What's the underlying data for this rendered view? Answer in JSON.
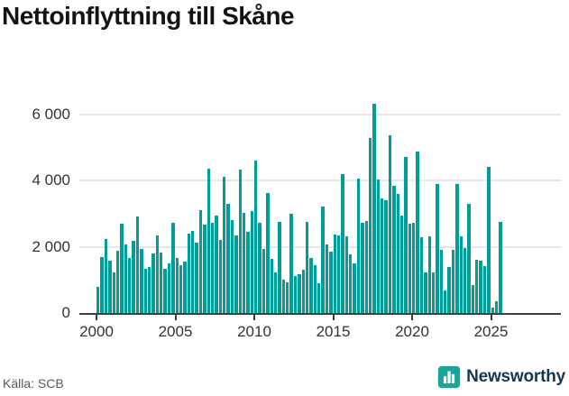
{
  "title": "Nettoinflyttning till Skåne",
  "footer": {
    "source": "Källa: SCB"
  },
  "brand": {
    "name": "Newsworthy",
    "icon_color": "#1ba39c",
    "text_color": "#16384e"
  },
  "chart_data": {
    "type": "bar",
    "title": "Nettoinflyttning till Skåne",
    "xlabel": "",
    "ylabel": "",
    "bar_color": "#009e99",
    "grid": true,
    "legend": "none",
    "ylim": [
      0,
      6600
    ],
    "x_tick_labels": [
      "2000",
      "2005",
      "2010",
      "2015",
      "2020",
      "2025"
    ],
    "y_ticks": [
      {
        "value": 0,
        "label": "0"
      },
      {
        "value": 2000,
        "label": "2 000"
      },
      {
        "value": 4000,
        "label": "4 000"
      },
      {
        "value": 6000,
        "label": "6 000"
      }
    ],
    "frequency": "quarterly",
    "categories": [
      "2000Q1",
      "2000Q2",
      "2000Q3",
      "2000Q4",
      "2001Q1",
      "2001Q2",
      "2001Q3",
      "2001Q4",
      "2002Q1",
      "2002Q2",
      "2002Q3",
      "2002Q4",
      "2003Q1",
      "2003Q2",
      "2003Q3",
      "2003Q4",
      "2004Q1",
      "2004Q2",
      "2004Q3",
      "2004Q4",
      "2005Q1",
      "2005Q2",
      "2005Q3",
      "2005Q4",
      "2006Q1",
      "2006Q2",
      "2006Q3",
      "2006Q4",
      "2007Q1",
      "2007Q2",
      "2007Q3",
      "2007Q4",
      "2008Q1",
      "2008Q2",
      "2008Q3",
      "2008Q4",
      "2009Q1",
      "2009Q2",
      "2009Q3",
      "2009Q4",
      "2010Q1",
      "2010Q2",
      "2010Q3",
      "2010Q4",
      "2011Q1",
      "2011Q2",
      "2011Q3",
      "2011Q4",
      "2012Q1",
      "2012Q2",
      "2012Q3",
      "2012Q4",
      "2013Q1",
      "2013Q2",
      "2013Q3",
      "2013Q4",
      "2014Q1",
      "2014Q2",
      "2014Q3",
      "2014Q4",
      "2015Q1",
      "2015Q2",
      "2015Q3",
      "2015Q4",
      "2016Q1",
      "2016Q2",
      "2016Q3",
      "2016Q4",
      "2017Q1",
      "2017Q2",
      "2017Q3",
      "2017Q4",
      "2018Q1",
      "2018Q2",
      "2018Q3",
      "2018Q4",
      "2019Q1",
      "2019Q2",
      "2019Q3",
      "2019Q4",
      "2020Q1",
      "2020Q2",
      "2020Q3",
      "2020Q4",
      "2021Q1",
      "2021Q2",
      "2021Q3",
      "2021Q4",
      "2022Q1",
      "2022Q2",
      "2022Q3",
      "2022Q4",
      "2023Q1",
      "2023Q2",
      "2023Q3",
      "2023Q4",
      "2024Q1",
      "2024Q2",
      "2024Q3",
      "2024Q4",
      "2025Q1",
      "2025Q2",
      "2025Q3"
    ],
    "values": [
      800,
      1700,
      2230,
      1580,
      1230,
      1890,
      2700,
      2080,
      1670,
      2190,
      2900,
      1920,
      1330,
      1390,
      1790,
      2340,
      1810,
      1340,
      1500,
      2710,
      1650,
      1450,
      1540,
      2400,
      2480,
      2120,
      3100,
      2660,
      4350,
      2710,
      2930,
      2210,
      4100,
      3290,
      2800,
      2350,
      4330,
      3020,
      2440,
      3070,
      4600,
      2710,
      1930,
      3610,
      1630,
      1220,
      2750,
      1000,
      930,
      2990,
      1110,
      1160,
      1310,
      2760,
      1670,
      1450,
      910,
      3200,
      2080,
      1850,
      2370,
      2330,
      4180,
      2300,
      1770,
      1500,
      4060,
      2710,
      2770,
      5280,
      6320,
      4020,
      3450,
      3400,
      5370,
      3850,
      3590,
      2940,
      4710,
      2690,
      2730,
      4870,
      2280,
      1230,
      2310,
      1230,
      3880,
      1900,
      690,
      1380,
      1900,
      3890,
      2300,
      1970,
      3280,
      850,
      1600,
      1590,
      1410,
      4400,
      150,
      350,
      2750
    ]
  }
}
